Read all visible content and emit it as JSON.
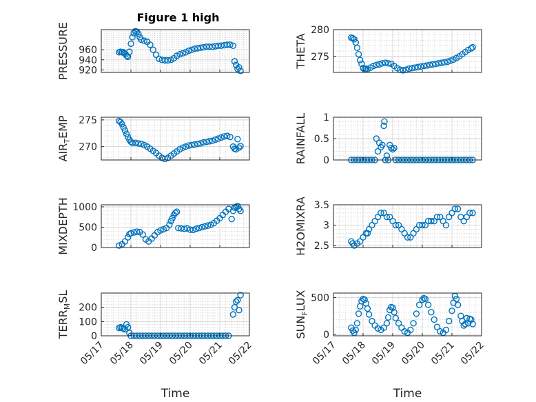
{
  "colors": {
    "marker": "#0072BD",
    "axis": "#262626",
    "grid": "#d4d4d4"
  },
  "chart_data": [
    {
      "type": "scatter",
      "title": "Figure 1 high",
      "ylabel": "PRESSURE",
      "xlabel": "",
      "xlim": [
        0,
        5
      ],
      "xticks": [
        0,
        1,
        2,
        3,
        4,
        5
      ],
      "ylim": [
        915,
        1000
      ],
      "yticks": [
        920,
        940,
        960
      ],
      "yticklabels": [
        "920",
        "940",
        "960"
      ],
      "grid": true,
      "x": [
        0.6,
        0.65,
        0.7,
        0.75,
        0.78,
        0.82,
        0.86,
        0.9,
        0.95,
        1.0,
        1.05,
        1.1,
        1.15,
        1.2,
        1.25,
        1.3,
        1.35,
        1.45,
        1.55,
        1.65,
        1.75,
        1.85,
        1.95,
        2.05,
        2.15,
        2.25,
        2.35,
        2.45,
        2.55,
        2.65,
        2.75,
        2.85,
        2.95,
        3.05,
        3.15,
        3.25,
        3.35,
        3.45,
        3.55,
        3.65,
        3.75,
        3.85,
        3.95,
        4.05,
        4.15,
        4.25,
        4.35,
        4.45,
        4.5,
        4.55,
        4.6,
        4.65,
        4.7
      ],
      "y": [
        955,
        956,
        955,
        955,
        953,
        951,
        948,
        946,
        956,
        972,
        985,
        993,
        997,
        996,
        992,
        985,
        980,
        978,
        976,
        970,
        960,
        950,
        942,
        940,
        939,
        939,
        940,
        943,
        948,
        951,
        953,
        955,
        958,
        960,
        962,
        963,
        964,
        965,
        966,
        966,
        966,
        967,
        968,
        968,
        969,
        970,
        970,
        968,
        937,
        930,
        922,
        925,
        918
      ]
    },
    {
      "type": "scatter",
      "ylabel": "THETA",
      "xlabel": "",
      "xlim": [
        0,
        5
      ],
      "xticks": [
        0,
        1,
        2,
        3,
        4,
        5
      ],
      "ylim": [
        272,
        280
      ],
      "yticks": [
        275,
        280
      ],
      "yticklabels": [
        "275",
        "280"
      ],
      "grid": true,
      "x": [
        0.6,
        0.65,
        0.7,
        0.75,
        0.8,
        0.85,
        0.9,
        0.95,
        1.0,
        1.05,
        1.1,
        1.15,
        1.25,
        1.35,
        1.45,
        1.55,
        1.65,
        1.75,
        1.85,
        1.95,
        2.05,
        2.15,
        2.25,
        2.35,
        2.45,
        2.55,
        2.65,
        2.75,
        2.85,
        2.95,
        3.05,
        3.15,
        3.25,
        3.35,
        3.45,
        3.55,
        3.65,
        3.75,
        3.85,
        3.95,
        4.05,
        4.15,
        4.25,
        4.35,
        4.45,
        4.55,
        4.65,
        4.7
      ],
      "y": [
        278.5,
        278.4,
        278.2,
        277.6,
        276.6,
        275.4,
        274.3,
        273.6,
        272.8,
        272.6,
        272.7,
        272.6,
        272.9,
        273.2,
        273.4,
        273.5,
        273.7,
        273.8,
        273.7,
        273.6,
        273.2,
        272.8,
        272.5,
        272.4,
        272.5,
        272.7,
        272.8,
        272.9,
        273.0,
        273.1,
        273.2,
        273.3,
        273.4,
        273.5,
        273.6,
        273.7,
        273.8,
        273.9,
        274.0,
        274.2,
        274.4,
        274.7,
        275.0,
        275.4,
        275.8,
        276.2,
        276.5,
        276.7
      ]
    },
    {
      "type": "scatter",
      "ylabel": "AIR_TEMP",
      "ylabel_main": "AIR",
      "ylabel_sub": "T",
      "ylabel_rest": "EMP",
      "xlabel": "",
      "xlim": [
        0,
        5
      ],
      "xticks": [
        0,
        1,
        2,
        3,
        4,
        5
      ],
      "ylim": [
        267.5,
        275.5
      ],
      "yticks": [
        270,
        275
      ],
      "yticklabels": [
        "270",
        "275"
      ],
      "grid": true,
      "x": [
        0.6,
        0.65,
        0.7,
        0.75,
        0.8,
        0.85,
        0.9,
        0.95,
        1.0,
        1.05,
        1.15,
        1.25,
        1.35,
        1.45,
        1.55,
        1.65,
        1.75,
        1.85,
        1.95,
        2.05,
        2.15,
        2.25,
        2.35,
        2.45,
        2.55,
        2.65,
        2.75,
        2.85,
        2.95,
        3.05,
        3.15,
        3.25,
        3.35,
        3.45,
        3.55,
        3.65,
        3.75,
        3.85,
        3.95,
        4.05,
        4.15,
        4.25,
        4.35,
        4.45,
        4.5,
        4.55,
        4.6,
        4.65,
        4.7
      ],
      "y": [
        274.8,
        274.6,
        274.2,
        273.6,
        273.0,
        272.4,
        271.8,
        271.3,
        270.9,
        270.7,
        270.7,
        270.6,
        270.5,
        270.3,
        270.0,
        269.6,
        269.2,
        268.8,
        268.3,
        267.9,
        267.7,
        267.9,
        268.3,
        268.7,
        269.1,
        269.5,
        269.8,
        270.0,
        270.2,
        270.3,
        270.4,
        270.5,
        270.6,
        270.8,
        270.9,
        271.0,
        271.1,
        271.3,
        271.5,
        271.7,
        271.9,
        272.0,
        271.8,
        270.0,
        269.6,
        269.5,
        271.4,
        269.8,
        270.1
      ]
    },
    {
      "type": "scatter",
      "ylabel": "RAINFALL",
      "xlabel": "",
      "xlim": [
        0,
        5
      ],
      "xticks": [
        0,
        1,
        2,
        3,
        4,
        5
      ],
      "ylim": [
        0,
        1
      ],
      "yticks": [
        0,
        0.5,
        1
      ],
      "yticklabels": [
        "0",
        "0.5",
        "1"
      ],
      "grid": true,
      "x": [
        0.6,
        0.7,
        0.8,
        0.9,
        1.0,
        1.1,
        1.2,
        1.3,
        1.4,
        1.45,
        1.5,
        1.55,
        1.6,
        1.65,
        1.7,
        1.72,
        1.75,
        1.8,
        1.85,
        1.9,
        1.95,
        2.0,
        2.05,
        2.1,
        2.2,
        2.3,
        2.4,
        2.5,
        2.6,
        2.7,
        2.8,
        2.9,
        3.0,
        3.1,
        3.2,
        3.3,
        3.4,
        3.5,
        3.6,
        3.7,
        3.8,
        3.9,
        4.0,
        4.1,
        4.2,
        4.3,
        4.4,
        4.5,
        4.6,
        4.7
      ],
      "y": [
        0,
        0,
        0,
        0,
        0,
        0,
        0,
        0,
        0,
        0.5,
        0.2,
        0.4,
        0.3,
        0.35,
        0.8,
        0.9,
        0.0,
        0.1,
        0.0,
        0.35,
        0.28,
        0.25,
        0.28,
        0,
        0,
        0,
        0,
        0,
        0,
        0,
        0,
        0,
        0,
        0,
        0,
        0,
        0,
        0,
        0,
        0,
        0,
        0,
        0,
        0,
        0,
        0,
        0,
        0,
        0,
        0
      ]
    },
    {
      "type": "scatter",
      "ylabel": "MIXDEPTH",
      "xlabel": "",
      "xlim": [
        0,
        5
      ],
      "xticks": [
        0,
        1,
        2,
        3,
        4,
        5
      ],
      "ylim": [
        0,
        1050
      ],
      "yticks": [
        0,
        500,
        1000
      ],
      "yticklabels": [
        "0",
        "500",
        "1000"
      ],
      "grid": true,
      "x": [
        0.6,
        0.7,
        0.8,
        0.9,
        0.95,
        1.0,
        1.1,
        1.2,
        1.3,
        1.4,
        1.5,
        1.6,
        1.7,
        1.8,
        1.9,
        2.0,
        2.1,
        2.2,
        2.3,
        2.35,
        2.4,
        2.45,
        2.5,
        2.55,
        2.6,
        2.7,
        2.8,
        2.9,
        3.0,
        3.1,
        3.2,
        3.3,
        3.4,
        3.5,
        3.6,
        3.7,
        3.8,
        3.9,
        4.0,
        4.1,
        4.2,
        4.3,
        4.4,
        4.45,
        4.5,
        4.55,
        4.6,
        4.65,
        4.7
      ],
      "y": [
        50,
        80,
        150,
        250,
        330,
        350,
        370,
        390,
        380,
        320,
        200,
        150,
        220,
        300,
        380,
        420,
        450,
        480,
        560,
        650,
        720,
        800,
        850,
        880,
        480,
        470,
        460,
        470,
        440,
        430,
        460,
        480,
        500,
        520,
        540,
        560,
        600,
        660,
        720,
        800,
        880,
        950,
        700,
        900,
        980,
        1000,
        1020,
        950,
        900
      ]
    },
    {
      "type": "scatter",
      "ylabel": "H2OMIXRA",
      "xlabel": "",
      "xlim": [
        0,
        5
      ],
      "xticks": [
        0,
        1,
        2,
        3,
        4,
        5
      ],
      "ylim": [
        2.45,
        3.5
      ],
      "yticks": [
        2.5,
        3,
        3.5
      ],
      "yticklabels": [
        "2.5",
        "3",
        "3.5"
      ],
      "grid": true,
      "x": [
        0.6,
        0.65,
        0.7,
        0.8,
        0.9,
        1.0,
        1.1,
        1.15,
        1.2,
        1.3,
        1.4,
        1.5,
        1.6,
        1.7,
        1.8,
        1.9,
        2.0,
        2.1,
        2.2,
        2.3,
        2.4,
        2.5,
        2.6,
        2.7,
        2.8,
        2.9,
        3.0,
        3.1,
        3.2,
        3.3,
        3.4,
        3.5,
        3.6,
        3.7,
        3.8,
        3.9,
        4.0,
        4.1,
        4.2,
        4.3,
        4.4,
        4.5,
        4.6,
        4.7
      ],
      "y": [
        2.6,
        2.55,
        2.5,
        2.55,
        2.6,
        2.7,
        2.8,
        2.8,
        2.9,
        3.0,
        3.1,
        3.2,
        3.3,
        3.3,
        3.2,
        3.2,
        3.1,
        3.0,
        3.0,
        2.9,
        2.8,
        2.7,
        2.7,
        2.8,
        2.9,
        3.0,
        3.0,
        3.0,
        3.1,
        3.1,
        3.1,
        3.2,
        3.2,
        3.1,
        3.0,
        3.2,
        3.3,
        3.4,
        3.4,
        3.2,
        3.1,
        3.2,
        3.3,
        3.3
      ]
    },
    {
      "type": "scatter",
      "ylabel": "TERR_MSL",
      "ylabel_main": "TERR",
      "ylabel_sub": "M",
      "ylabel_rest": "SL",
      "xlabel": "Time",
      "xlim": [
        0,
        5
      ],
      "xticks": [
        0,
        1,
        2,
        3,
        4,
        5
      ],
      "xticklabels": [
        "05/17",
        "05/18",
        "05/19",
        "05/20",
        "05/21",
        "05/22"
      ],
      "ylim": [
        0,
        300
      ],
      "yticks": [
        0,
        100,
        200
      ],
      "yticklabels": [
        "0",
        "100",
        "200"
      ],
      "grid": true,
      "x": [
        0.6,
        0.65,
        0.7,
        0.75,
        0.8,
        0.85,
        0.9,
        0.95,
        1.0,
        1.1,
        1.2,
        1.3,
        1.4,
        1.5,
        1.6,
        1.7,
        1.8,
        1.9,
        2.0,
        2.1,
        2.2,
        2.3,
        2.4,
        2.5,
        2.6,
        2.7,
        2.8,
        2.9,
        3.0,
        3.1,
        3.2,
        3.3,
        3.4,
        3.5,
        3.6,
        3.7,
        3.8,
        3.9,
        4.0,
        4.1,
        4.2,
        4.3,
        4.45,
        4.5,
        4.55,
        4.6,
        4.65,
        4.7
      ],
      "y": [
        55,
        60,
        55,
        50,
        45,
        80,
        60,
        20,
        0,
        0,
        0,
        0,
        0,
        0,
        0,
        0,
        0,
        0,
        0,
        0,
        0,
        0,
        0,
        0,
        0,
        0,
        0,
        0,
        0,
        0,
        0,
        0,
        0,
        0,
        0,
        0,
        0,
        0,
        0,
        0,
        0,
        0,
        150,
        200,
        240,
        250,
        180,
        285
      ]
    },
    {
      "type": "scatter",
      "ylabel": "SUN_FLUX",
      "ylabel_main": "SUN",
      "ylabel_sub": "F",
      "ylabel_rest": "LUX",
      "xlabel": "Time",
      "xlim": [
        0,
        5
      ],
      "xticks": [
        0,
        1,
        2,
        3,
        4,
        5
      ],
      "xticklabels": [
        "05/17",
        "05/18",
        "05/19",
        "05/20",
        "05/21",
        "05/22"
      ],
      "ylim": [
        -20,
        560
      ],
      "yticks": [
        0,
        500
      ],
      "yticklabels": [
        "0",
        "500"
      ],
      "grid": true,
      "x": [
        0.6,
        0.65,
        0.7,
        0.75,
        0.8,
        0.85,
        0.9,
        0.95,
        1.0,
        1.05,
        1.1,
        1.15,
        1.2,
        1.3,
        1.4,
        1.5,
        1.6,
        1.7,
        1.8,
        1.85,
        1.9,
        1.95,
        2.0,
        2.05,
        2.1,
        2.2,
        2.3,
        2.4,
        2.5,
        2.6,
        2.7,
        2.8,
        2.9,
        3.0,
        3.05,
        3.1,
        3.2,
        3.3,
        3.4,
        3.5,
        3.6,
        3.7,
        3.8,
        3.9,
        4.0,
        4.05,
        4.1,
        4.15,
        4.2,
        4.3,
        4.35,
        4.4,
        4.45,
        4.5,
        4.55,
        4.6,
        4.65,
        4.7
      ],
      "y": [
        90,
        50,
        20,
        60,
        150,
        280,
        380,
        450,
        480,
        470,
        420,
        350,
        270,
        180,
        120,
        80,
        60,
        90,
        150,
        230,
        330,
        370,
        360,
        300,
        220,
        150,
        90,
        40,
        20,
        60,
        150,
        280,
        400,
        470,
        490,
        480,
        400,
        300,
        200,
        100,
        40,
        20,
        60,
        180,
        320,
        430,
        520,
        480,
        400,
        250,
        180,
        120,
        140,
        220,
        150,
        210,
        200,
        140
      ]
    }
  ]
}
